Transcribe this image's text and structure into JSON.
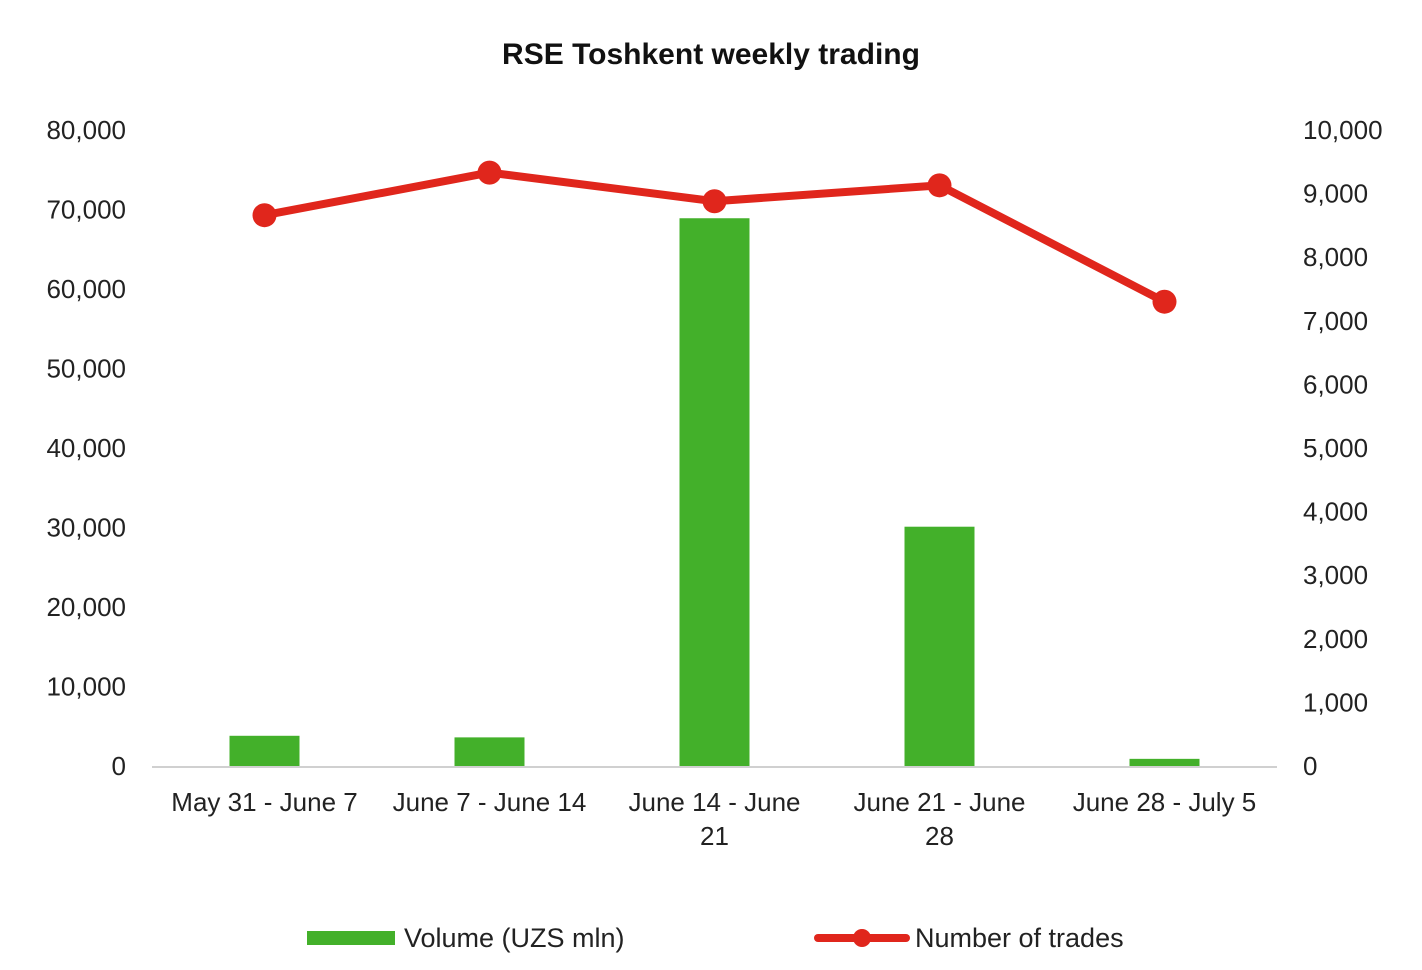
{
  "chart_data": {
    "type": "bar",
    "title": "RSE Toshkent weekly trading",
    "categories": [
      [
        "May 31 - June 7"
      ],
      [
        "June 7 - June 14"
      ],
      [
        "June 14 - June",
        "21"
      ],
      [
        "June 21 - June",
        "28"
      ],
      [
        "June 28 - July 5"
      ]
    ],
    "series": [
      {
        "name": "Volume (UZS mln)",
        "type": "bar",
        "axis": "left",
        "color": "#43b02a",
        "values": [
          3800,
          3600,
          68900,
          30100,
          900
        ]
      },
      {
        "name": "Number of trades",
        "type": "line",
        "axis": "right",
        "color": "#e0261c",
        "values": [
          8660,
          9330,
          8880,
          9130,
          7300
        ]
      }
    ],
    "y_left": {
      "min": 0,
      "max": 80000,
      "ticks": [
        "0",
        "10,000",
        "20,000",
        "30,000",
        "40,000",
        "50,000",
        "60,000",
        "70,000",
        "80,000"
      ]
    },
    "y_right": {
      "min": 0,
      "max": 10000,
      "ticks": [
        "0",
        "1,000",
        "2,000",
        "3,000",
        "4,000",
        "5,000",
        "6,000",
        "7,000",
        "8,000",
        "9,000",
        "10,000"
      ]
    },
    "grid": false,
    "legend_position": "bottom"
  }
}
